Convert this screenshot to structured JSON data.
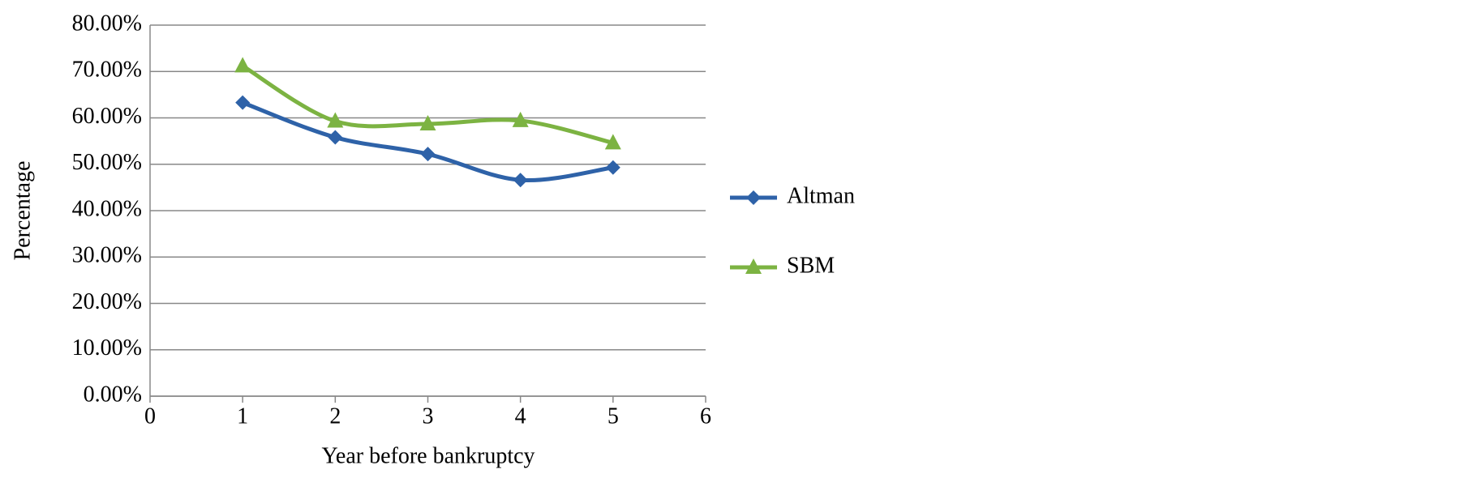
{
  "chart_data": {
    "type": "line",
    "x_label": "Year before bankruptcy",
    "y_label": "Percentage",
    "series": [
      {
        "name": "Altman",
        "color": "#2e62a8",
        "marker": "diamond",
        "x": [
          1,
          2,
          3,
          4,
          5
        ],
        "values": [
          63.3,
          55.8,
          52.2,
          46.6,
          49.3
        ]
      },
      {
        "name": "SBM",
        "color": "#7cb342",
        "marker": "triangle",
        "x": [
          1,
          2,
          3,
          4,
          5
        ],
        "values": [
          71.2,
          59.3,
          58.7,
          59.4,
          54.6
        ]
      }
    ],
    "xlim": [
      0,
      6
    ],
    "xticks": [
      0,
      1,
      2,
      3,
      4,
      5,
      6
    ],
    "ylim": [
      0,
      80
    ],
    "yticks": [
      {
        "value": 0,
        "label": "0.00%"
      },
      {
        "value": 10,
        "label": "10.00%"
      },
      {
        "value": 20,
        "label": "20.00%"
      },
      {
        "value": 30,
        "label": "30.00%"
      },
      {
        "value": 40,
        "label": "40.00%"
      },
      {
        "value": 50,
        "label": "50.00%"
      },
      {
        "value": 60,
        "label": "60.00%"
      },
      {
        "value": 70,
        "label": "70.00%"
      },
      {
        "value": 80,
        "label": "80.00%"
      }
    ],
    "grid": true,
    "legend": "right"
  }
}
